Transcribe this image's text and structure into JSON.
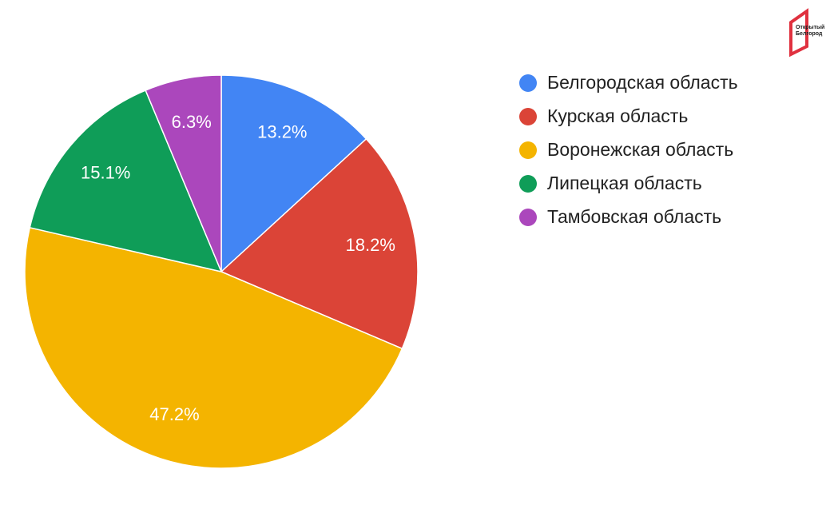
{
  "chart_data": {
    "type": "pie",
    "logo": [
      "Открытый",
      "Белгород"
    ],
    "categories": [
      "Белгородская область",
      "Курская область",
      "Воронежская область",
      "Липецкая область",
      "Тамбовская область"
    ],
    "values": [
      13.2,
      18.2,
      47.2,
      15.1,
      6.3
    ],
    "value_labels": [
      "13.2%",
      "18.2%",
      "47.2%",
      "15.1%",
      "6.3%"
    ],
    "colors": [
      "#4285f4",
      "#db4437",
      "#f4b400",
      "#0f9d58",
      "#ab47bc"
    ],
    "legend": "right"
  }
}
